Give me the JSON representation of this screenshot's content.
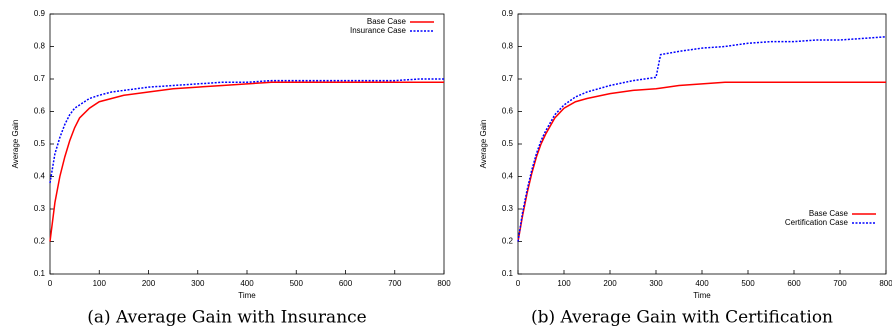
{
  "chart_data": [
    {
      "type": "line",
      "title": "(a) Average Gain with Insurance",
      "xlabel": "Time",
      "ylabel": "Average Gain",
      "x": [
        0,
        10,
        20,
        30,
        40,
        50,
        60,
        80,
        100,
        125,
        150,
        200,
        250,
        300,
        310,
        350,
        400,
        450,
        500,
        550,
        600,
        650,
        700,
        750,
        800
      ],
      "xlim": [
        0,
        800
      ],
      "ylim": [
        0.1,
        0.9
      ],
      "xticks": [
        0,
        100,
        200,
        300,
        400,
        500,
        600,
        700,
        800
      ],
      "yticks": [
        0.1,
        0.2,
        0.3,
        0.4,
        0.5,
        0.6,
        0.7,
        0.8,
        0.9
      ],
      "legend": "upper right",
      "series": [
        {
          "name": "Base Case",
          "color": "#ff0000",
          "line_style": "solid",
          "values": [
            0.2,
            0.32,
            0.4,
            0.46,
            0.51,
            0.55,
            0.58,
            0.61,
            0.63,
            0.64,
            0.65,
            0.66,
            0.67,
            0.675,
            0.676,
            0.68,
            0.685,
            0.69,
            0.69,
            0.69,
            0.69,
            0.69,
            0.69,
            0.69,
            0.69
          ]
        },
        {
          "name": "Insurance Case",
          "color": "#0000ff",
          "line_style": "dotted",
          "values": [
            0.38,
            0.47,
            0.52,
            0.56,
            0.59,
            0.61,
            0.62,
            0.64,
            0.65,
            0.66,
            0.665,
            0.675,
            0.68,
            0.685,
            0.686,
            0.69,
            0.69,
            0.695,
            0.695,
            0.695,
            0.695,
            0.695,
            0.695,
            0.7,
            0.7
          ]
        }
      ]
    },
    {
      "type": "line",
      "title": "(b) Average Gain with Certification",
      "xlabel": "Time",
      "ylabel": "Average Gain",
      "x": [
        0,
        10,
        20,
        30,
        40,
        50,
        60,
        80,
        100,
        125,
        150,
        200,
        250,
        300,
        310,
        350,
        400,
        450,
        500,
        550,
        600,
        650,
        700,
        750,
        800
      ],
      "xlim": [
        0,
        800
      ],
      "ylim": [
        0.1,
        0.9
      ],
      "xticks": [
        0,
        100,
        200,
        300,
        400,
        500,
        600,
        700,
        800
      ],
      "yticks": [
        0.1,
        0.2,
        0.3,
        0.4,
        0.5,
        0.6,
        0.7,
        0.8,
        0.9
      ],
      "legend": "lower right",
      "series": [
        {
          "name": "Base Case",
          "color": "#ff0000",
          "line_style": "solid",
          "values": [
            0.2,
            0.28,
            0.35,
            0.41,
            0.46,
            0.5,
            0.53,
            0.58,
            0.61,
            0.63,
            0.64,
            0.655,
            0.665,
            0.67,
            0.672,
            0.68,
            0.685,
            0.69,
            0.69,
            0.69,
            0.69,
            0.69,
            0.69,
            0.69,
            0.69
          ]
        },
        {
          "name": "Certification Case",
          "color": "#0000ff",
          "line_style": "dotted",
          "values": [
            0.2,
            0.29,
            0.36,
            0.42,
            0.47,
            0.51,
            0.54,
            0.59,
            0.62,
            0.645,
            0.66,
            0.68,
            0.695,
            0.705,
            0.775,
            0.785,
            0.795,
            0.8,
            0.81,
            0.815,
            0.815,
            0.82,
            0.82,
            0.825,
            0.83
          ]
        }
      ]
    }
  ]
}
